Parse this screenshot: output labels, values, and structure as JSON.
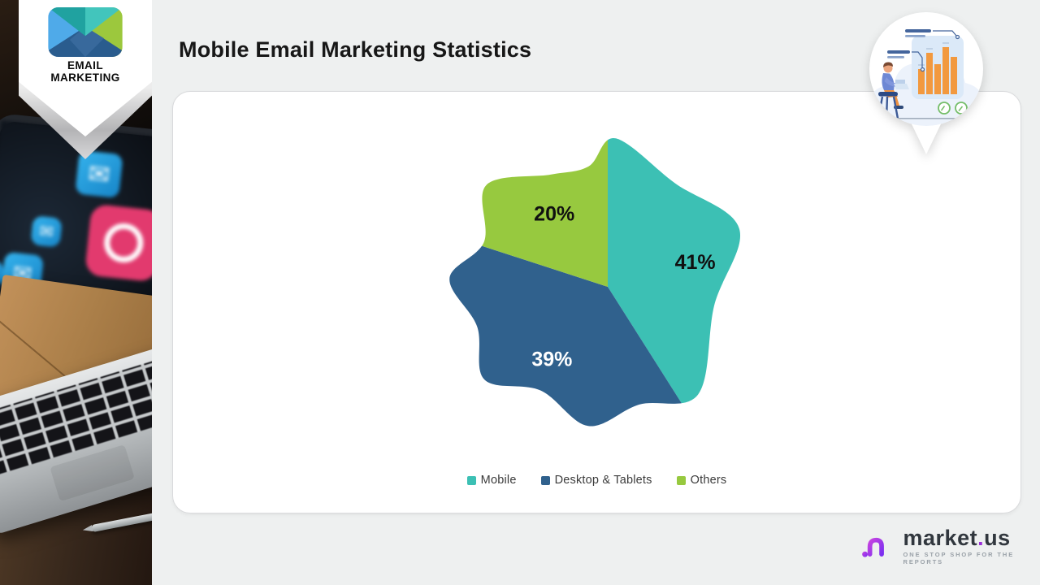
{
  "badge": {
    "line1": "EMAIL",
    "line2": "MARKETING"
  },
  "header": {
    "title": "Mobile Email Marketing Statistics"
  },
  "chart_data": {
    "type": "pie",
    "shape": "organic-blob",
    "title": "Mobile Email Marketing Statistics",
    "start_angle_deg": 0,
    "direction": "clockwise",
    "legend_position": "bottom",
    "series": [
      {
        "name": "Mobile",
        "value": 41,
        "label": "41%",
        "color": "#3cc0b4",
        "label_color": "#101010"
      },
      {
        "name": "Desktop & Tablets",
        "value": 39,
        "label": "39%",
        "color": "#30618d",
        "label_color": "#ffffff"
      },
      {
        "name": "Others",
        "value": 20,
        "label": "20%",
        "color": "#97c93f",
        "label_color": "#101010"
      }
    ]
  },
  "sidebar": {
    "app_icon_glyph": "✉"
  },
  "brand": {
    "name_main": "market",
    "name_dot": ".",
    "name_suffix": "us",
    "tagline": "ONE STOP SHOP FOR THE REPORTS"
  }
}
